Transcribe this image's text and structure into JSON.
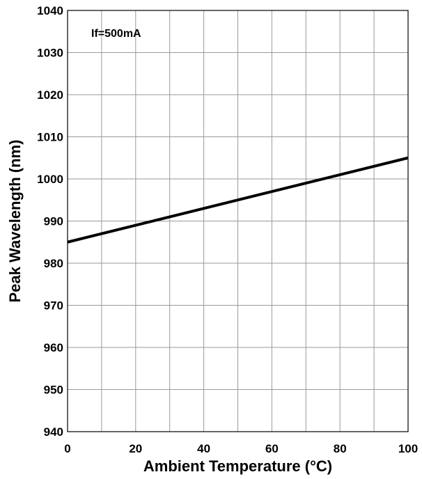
{
  "chart_data": {
    "type": "line",
    "title": "",
    "xlabel": "Ambient Temperature (°C)",
    "ylabel": "Peak Wavelength (nm)",
    "annotation": "If=500mA",
    "xlim": [
      0,
      100
    ],
    "ylim": [
      940,
      1040
    ],
    "x_ticks": [
      0,
      10,
      20,
      30,
      40,
      50,
      60,
      70,
      80,
      90,
      100
    ],
    "x_tick_labels": [
      "0",
      "",
      "20",
      "",
      "40",
      "",
      "60",
      "",
      "80",
      "",
      "100"
    ],
    "y_ticks": [
      940,
      950,
      960,
      970,
      980,
      990,
      1000,
      1010,
      1020,
      1030,
      1040
    ],
    "y_tick_labels": [
      "940",
      "950",
      "960",
      "970",
      "980",
      "990",
      "1000",
      "1010",
      "1020",
      "1030",
      "1040"
    ],
    "grid": true,
    "series": [
      {
        "x": [
          0,
          100
        ],
        "y": [
          985,
          1005
        ],
        "color": "#000000"
      }
    ]
  }
}
